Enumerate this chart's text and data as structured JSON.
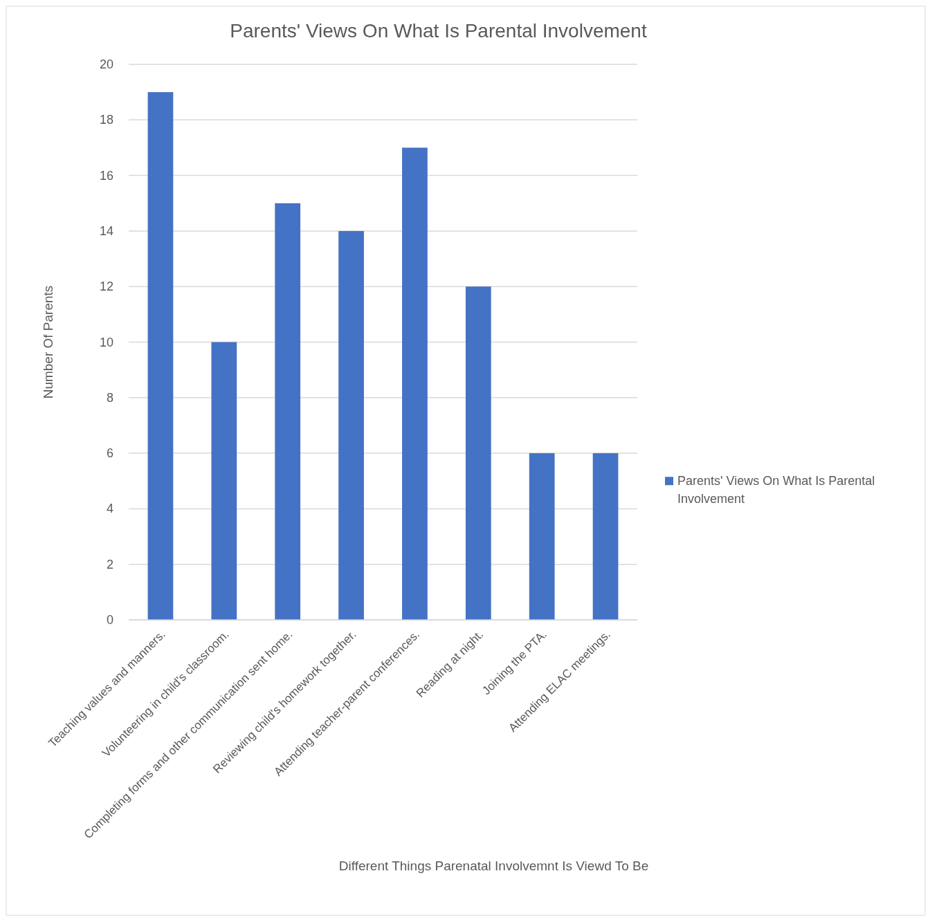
{
  "chart_data": {
    "type": "bar",
    "title": "Parents' Views On What Is Parental Involvement",
    "xlabel": "Different Things Parenatal Involvemnt Is Viewd To Be",
    "ylabel": "Number Of Parents",
    "categories": [
      "Teaching values and manners.",
      "Volunteering in child's classroom.",
      "Completing forms and other communication sent home.",
      "Reviewing child's homework together.",
      "Attending teacher-parent conferences.",
      "Reading at night.",
      "Joining the PTA.",
      "Attending ELAC meetings."
    ],
    "series": [
      {
        "name": "Parents' Views On What Is Parental Involvement",
        "color": "#4472c4",
        "values": [
          19,
          10,
          15,
          14,
          17,
          12,
          6,
          6
        ]
      }
    ],
    "ylim": [
      0,
      20
    ],
    "yticks": [
      0,
      2,
      4,
      6,
      8,
      10,
      12,
      14,
      16,
      18,
      20
    ],
    "grid": "y",
    "legend": "right"
  }
}
